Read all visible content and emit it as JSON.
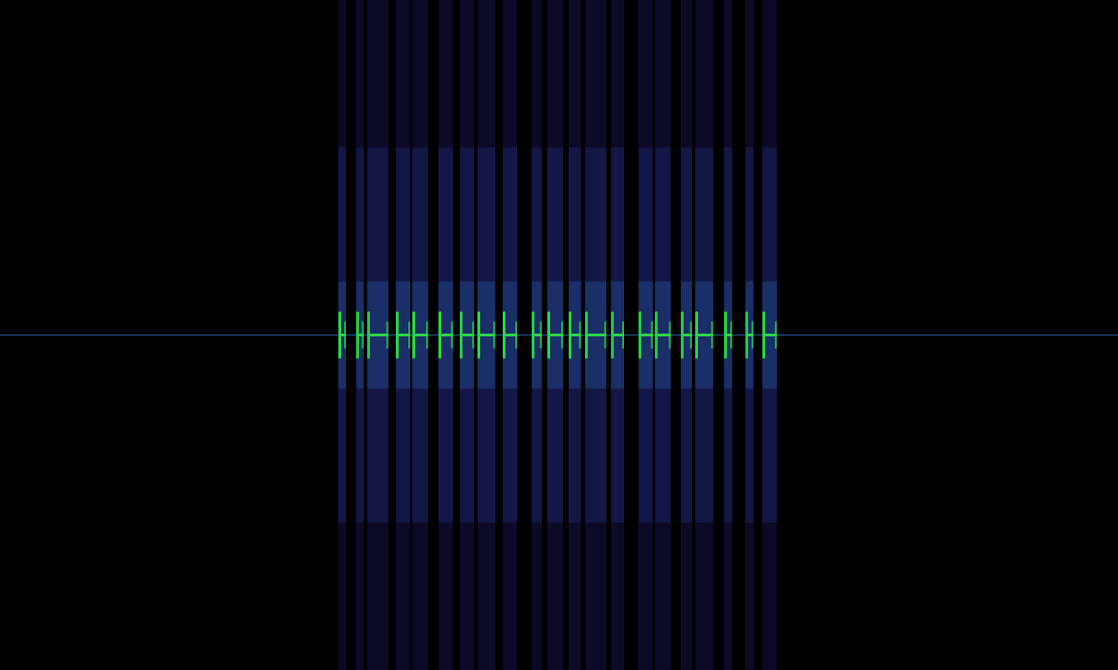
{
  "chart_data": {
    "type": "spectrogram",
    "tick_labels": false,
    "grid": false,
    "xlim": [
      0,
      1632
    ],
    "ylim": [
      -1,
      1
    ],
    "carrier": 0,
    "color": "#2ad14a",
    "bursts": [
      [
        494,
        505
      ],
      [
        520,
        531
      ],
      [
        536,
        567
      ],
      [
        578,
        599
      ],
      [
        602,
        625
      ],
      [
        640,
        661
      ],
      [
        671,
        692
      ],
      [
        697,
        723
      ],
      [
        734,
        755
      ],
      [
        776,
        791
      ],
      [
        799,
        822
      ],
      [
        830,
        848
      ],
      [
        854,
        885
      ],
      [
        892,
        911
      ],
      [
        932,
        953
      ],
      [
        956,
        979
      ],
      [
        994,
        1010
      ],
      [
        1015,
        1041
      ],
      [
        1057,
        1069
      ],
      [
        1088,
        1100
      ],
      [
        1113,
        1134
      ]
    ]
  }
}
